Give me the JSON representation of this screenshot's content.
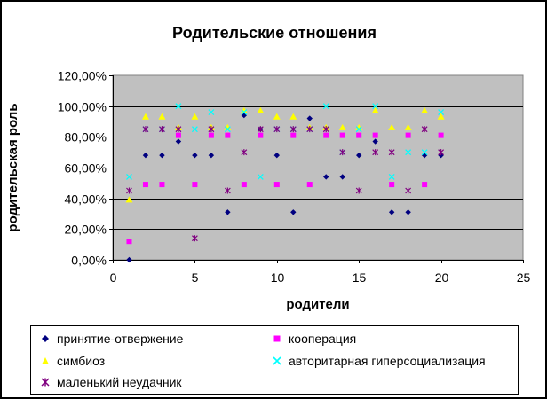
{
  "chart_data": {
    "type": "scatter",
    "title": "Родительские отношения",
    "xlabel": "родители",
    "ylabel": "родительская роль",
    "xlim": [
      0,
      25
    ],
    "ylim": [
      0,
      1.2
    ],
    "x_ticks": [
      "0",
      "5",
      "10",
      "15",
      "20",
      "25"
    ],
    "y_ticks": [
      "0,00%",
      "20,00%",
      "40,00%",
      "60,00%",
      "80,00%",
      "100,00%",
      "120,00%"
    ],
    "grid": "horizontal",
    "plot_background": "#c0c0c0",
    "legend_position": "bottom",
    "series": [
      {
        "name": "принятие-отвержение",
        "marker": "diamond",
        "color": "#000080",
        "x": [
          1,
          2,
          3,
          4,
          5,
          6,
          7,
          8,
          9,
          10,
          11,
          12,
          13,
          14,
          15,
          16,
          17,
          18,
          19,
          20
        ],
        "y": [
          0.0,
          0.68,
          0.68,
          0.77,
          0.68,
          0.68,
          0.31,
          0.94,
          0.85,
          0.68,
          0.31,
          0.92,
          0.54,
          0.54,
          0.68,
          0.77,
          0.31,
          0.31,
          0.68,
          0.68
        ]
      },
      {
        "name": "кооперация",
        "marker": "square",
        "color": "#ff00ff",
        "x": [
          1,
          2,
          3,
          4,
          5,
          6,
          7,
          8,
          9,
          10,
          11,
          12,
          13,
          14,
          15,
          16,
          17,
          18,
          19,
          20
        ],
        "y": [
          0.12,
          0.49,
          0.49,
          0.81,
          0.49,
          0.81,
          0.81,
          0.49,
          0.81,
          0.49,
          0.81,
          0.49,
          0.81,
          0.81,
          0.81,
          0.81,
          0.49,
          0.81,
          0.49,
          0.81
        ]
      },
      {
        "name": "симбиоз",
        "marker": "triangle",
        "color": "#ffff00",
        "x": [
          1,
          2,
          3,
          4,
          5,
          6,
          7,
          8,
          9,
          10,
          11,
          12,
          13,
          14,
          15,
          16,
          17,
          18,
          19,
          20
        ],
        "y": [
          0.39,
          0.93,
          0.93,
          0.86,
          0.93,
          0.86,
          0.86,
          0.97,
          0.97,
          0.93,
          0.93,
          0.86,
          0.86,
          0.86,
          0.86,
          0.97,
          0.86,
          0.86,
          0.97,
          0.93
        ]
      },
      {
        "name": "авторитарная гиперсоциализация",
        "marker": "x",
        "color": "#00ffff",
        "x": [
          1,
          2,
          3,
          4,
          5,
          6,
          7,
          8,
          9,
          10,
          11,
          12,
          13,
          14,
          15,
          16,
          17,
          18,
          19,
          20
        ],
        "y": [
          0.54,
          0.85,
          0.85,
          1.0,
          0.85,
          0.96,
          0.85,
          0.96,
          0.54,
          0.85,
          0.85,
          0.85,
          1.0,
          0.7,
          0.85,
          1.0,
          0.54,
          0.7,
          0.7,
          0.96
        ]
      },
      {
        "name": "маленький неудачник",
        "marker": "star",
        "color": "#800080",
        "x": [
          1,
          2,
          3,
          4,
          5,
          6,
          7,
          8,
          9,
          10,
          11,
          12,
          13,
          14,
          15,
          16,
          17,
          18,
          19,
          20
        ],
        "y": [
          0.45,
          0.85,
          0.85,
          0.85,
          0.14,
          0.85,
          0.45,
          0.7,
          0.85,
          0.85,
          0.85,
          0.85,
          0.85,
          0.7,
          0.45,
          0.7,
          0.7,
          0.45,
          0.85,
          0.7
        ]
      }
    ]
  }
}
